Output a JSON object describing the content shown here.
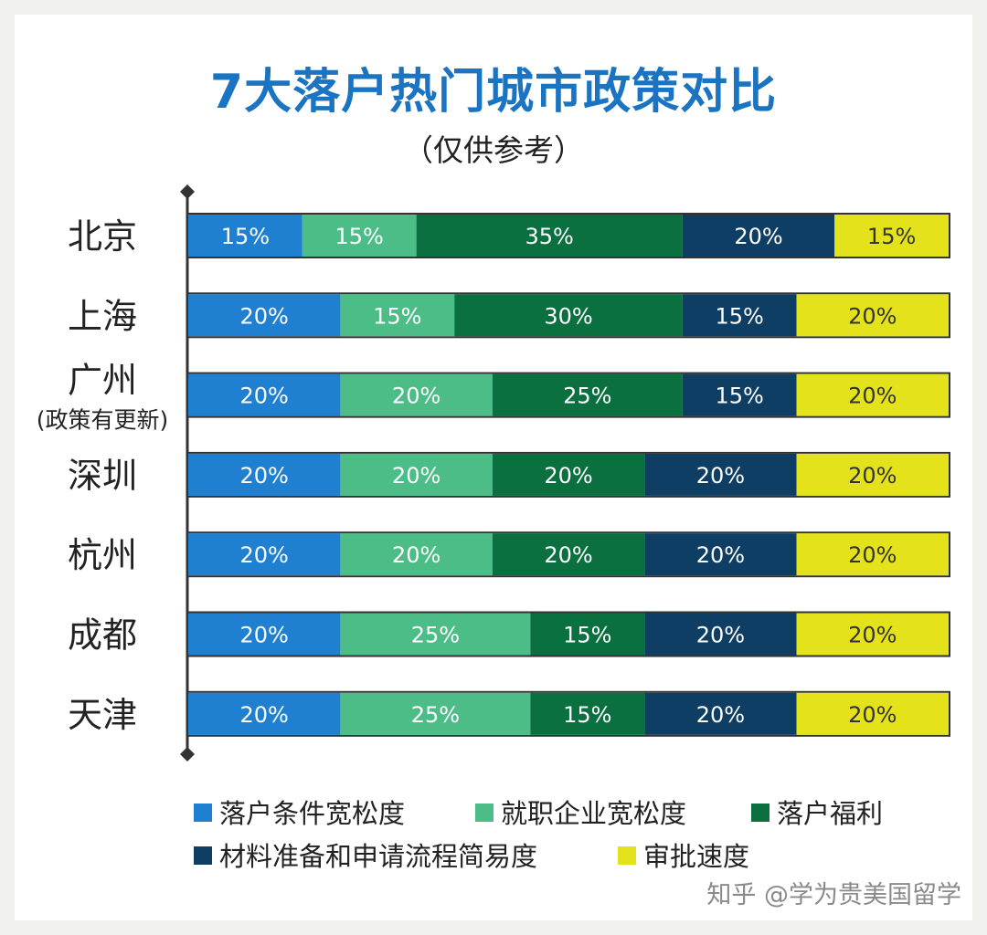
{
  "chart_data": {
    "type": "bar",
    "stacked": true,
    "orientation": "horizontal",
    "title": "7大落户热门城市政策对比",
    "subtitle": "（仅供参考）",
    "categories": [
      "北京",
      "上海",
      "广州",
      "深圳",
      "杭州",
      "成都",
      "天津"
    ],
    "category_notes": [
      "",
      "",
      "(政策有更新)",
      "",
      "",
      "",
      ""
    ],
    "series": [
      {
        "name": "落户条件宽松度",
        "color": "#1f7fd1",
        "label_color": "#ffffff",
        "values": [
          15,
          20,
          20,
          20,
          20,
          20,
          20
        ]
      },
      {
        "name": "就职企业宽松度",
        "color": "#4dbd87",
        "label_color": "#ffffff",
        "values": [
          15,
          15,
          20,
          20,
          20,
          25,
          25
        ]
      },
      {
        "name": "落户福利",
        "color": "#0a7040",
        "label_color": "#ffffff",
        "values": [
          35,
          30,
          25,
          20,
          20,
          15,
          15
        ]
      },
      {
        "name": "材料准备和申请流程简易度",
        "color": "#0e3e63",
        "label_color": "#ffffff",
        "values": [
          20,
          15,
          15,
          20,
          20,
          20,
          20
        ]
      },
      {
        "name": "审批速度",
        "color": "#e4e21a",
        "label_color": "#333333",
        "values": [
          15,
          20,
          20,
          20,
          20,
          20,
          20
        ]
      }
    ],
    "value_suffix": "%",
    "xlim": [
      0,
      100
    ],
    "legend_position": "bottom",
    "grid": false
  },
  "watermark": "知乎 @学为贵美国留学"
}
